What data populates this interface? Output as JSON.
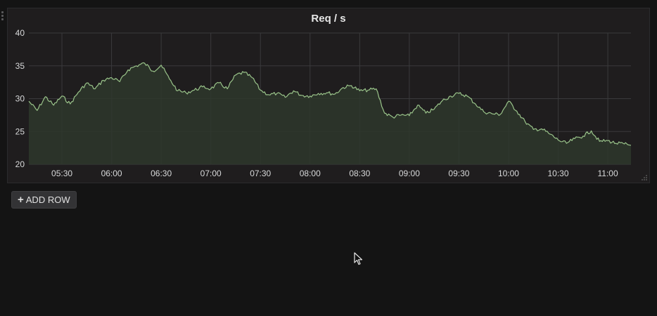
{
  "panel": {
    "title": "Req / s"
  },
  "toolbar": {
    "add_row_label": "ADD ROW",
    "add_row_icon": "plus-icon"
  },
  "colors": {
    "background": "#141414",
    "panel_background": "#1f1d1e",
    "series_line": "#9ac48a",
    "series_fill": "#2e372c",
    "grid": "#3a3a3c",
    "text": "#d8d9da"
  },
  "chart_data": {
    "type": "area",
    "title": "Req / s",
    "xlabel": "",
    "ylabel": "",
    "xlim": [
      "05:10",
      "11:14"
    ],
    "ylim": [
      20,
      40
    ],
    "yticks": [
      20,
      25,
      30,
      35,
      40
    ],
    "xticks": [
      "05:30",
      "06:00",
      "06:30",
      "07:00",
      "07:30",
      "08:00",
      "08:30",
      "09:00",
      "09:30",
      "10:00",
      "10:30",
      "11:00"
    ],
    "grid": true,
    "legend": "none",
    "series": [
      {
        "x": [
          "05:10",
          "05:15",
          "05:20",
          "05:25",
          "05:30",
          "05:35",
          "05:40",
          "05:45",
          "05:50",
          "05:55",
          "06:00",
          "06:05",
          "06:10",
          "06:15",
          "06:20",
          "06:25",
          "06:30",
          "06:35",
          "06:40",
          "06:45",
          "06:50",
          "06:55",
          "07:00",
          "07:05",
          "07:10",
          "07:15",
          "07:20",
          "07:25",
          "07:30",
          "07:35",
          "07:40",
          "07:45",
          "07:50",
          "07:55",
          "08:00",
          "08:05",
          "08:10",
          "08:15",
          "08:20",
          "08:25",
          "08:30",
          "08:35",
          "08:40",
          "08:45",
          "08:50",
          "08:55",
          "09:00",
          "09:05",
          "09:10",
          "09:15",
          "09:20",
          "09:25",
          "09:30",
          "09:35",
          "09:40",
          "09:45",
          "09:50",
          "09:55",
          "10:00",
          "10:05",
          "10:10",
          "10:15",
          "10:20",
          "10:25",
          "10:30",
          "10:35",
          "10:40",
          "10:45",
          "10:50",
          "10:55",
          "11:00",
          "11:05",
          "11:10",
          "11:14"
        ],
        "values": [
          29.6,
          28.2,
          30.3,
          29.0,
          30.4,
          29.2,
          31.0,
          32.4,
          31.5,
          32.8,
          33.2,
          32.6,
          34.4,
          35.0,
          35.4,
          34.2,
          35.1,
          33.0,
          31.2,
          30.9,
          31.3,
          31.8,
          31.5,
          32.4,
          31.5,
          33.6,
          34.0,
          33.2,
          31.3,
          30.6,
          30.8,
          30.2,
          31.2,
          30.5,
          30.4,
          30.8,
          30.9,
          30.7,
          31.7,
          32.0,
          31.2,
          31.3,
          31.5,
          27.8,
          27.2,
          27.5,
          27.4,
          29.0,
          27.8,
          28.4,
          29.7,
          30.4,
          30.8,
          30.4,
          29.2,
          28.0,
          27.7,
          27.6,
          29.6,
          28.1,
          26.5,
          25.3,
          25.4,
          24.6,
          23.7,
          23.2,
          23.9,
          24.3,
          25.1,
          23.5,
          23.6,
          23.2,
          23.1,
          22.9
        ]
      }
    ]
  }
}
